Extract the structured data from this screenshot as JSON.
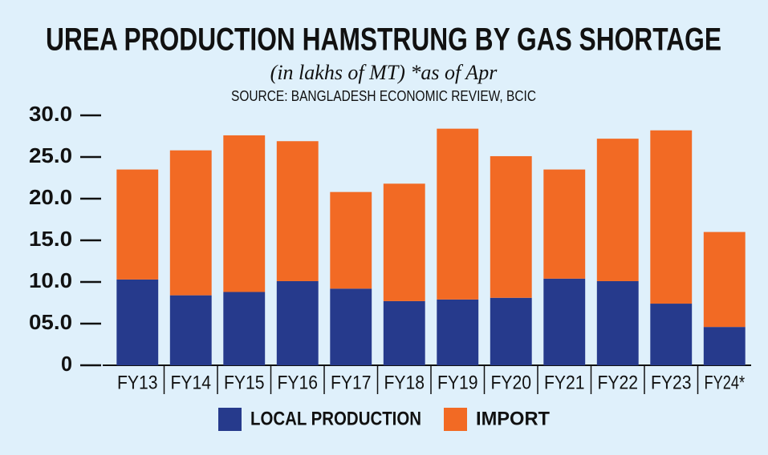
{
  "chart_data": {
    "type": "stacked_bar",
    "title": "UREA PRODUCTION HAMSTRUNG BY GAS SHORTAGE",
    "subtitle": "(in lakhs of MT) *as of Apr",
    "source": "SOURCE: BANGLADESH ECONOMIC REVIEW, BCIC",
    "categories": [
      "FY13",
      "FY14",
      "FY15",
      "FY16",
      "FY17",
      "FY18",
      "FY19",
      "FY20",
      "FY21",
      "FY22",
      "FY23",
      "FY24*"
    ],
    "series": [
      {
        "name": "LOCAL PRODUCTION",
        "color": "#263a8c",
        "values": [
          10.3,
          8.4,
          8.8,
          10.1,
          9.2,
          7.7,
          7.9,
          8.1,
          10.4,
          10.1,
          7.4,
          4.6
        ]
      },
      {
        "name": "IMPORT",
        "color": "#f26a24",
        "values": [
          13.2,
          17.4,
          18.8,
          16.8,
          11.6,
          14.1,
          20.5,
          17.0,
          13.1,
          17.1,
          20.8,
          11.4
        ]
      }
    ],
    "ylim": [
      0,
      30
    ],
    "yticks": [
      0,
      {
        "value": 5,
        "label": "05.0"
      },
      {
        "value": 10,
        "label": "10.0"
      },
      {
        "value": 15,
        "label": "15.0"
      },
      {
        "value": 20,
        "label": "20.0"
      },
      {
        "value": 25,
        "label": "25.0"
      },
      {
        "value": 30,
        "label": "30.0"
      }
    ],
    "legend": "bottom"
  }
}
